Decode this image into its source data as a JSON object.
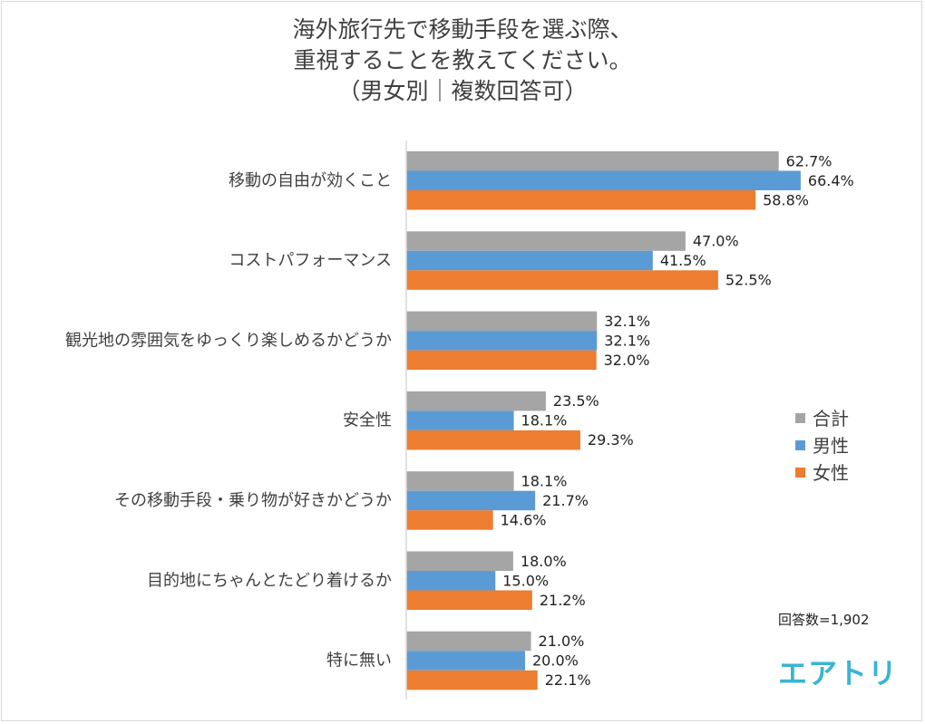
{
  "chart_data": {
    "type": "bar",
    "orientation": "horizontal",
    "title_lines": [
      "海外旅行先で移動手段を選ぶ際、",
      "重視することを教えてください。",
      "（男女別｜複数回答可）"
    ],
    "categories": [
      "移動の自由が効くこと",
      "コストパフォーマンス",
      "観光地の雰囲気をゆっくり楽しめるかどうか",
      "安全性",
      "その移動手段・乗り物が好きかどうか",
      "目的地にちゃんとたどり着けるか",
      "特に無い"
    ],
    "series": [
      {
        "name": "合計",
        "color": "#a5a5a5",
        "values": [
          62.7,
          47.0,
          32.1,
          23.5,
          18.1,
          18.0,
          21.0
        ]
      },
      {
        "name": "男性",
        "color": "#5b9bd5",
        "values": [
          66.4,
          41.5,
          32.1,
          18.1,
          21.7,
          15.0,
          20.0
        ]
      },
      {
        "name": "女性",
        "color": "#ed7d31",
        "values": [
          58.8,
          52.5,
          32.0,
          29.3,
          14.6,
          21.2,
          22.1
        ]
      }
    ],
    "value_suffix": "%",
    "value_format": "one_decimal",
    "legend": "right",
    "grid": false,
    "xlim": [
      0,
      100
    ]
  },
  "note": "回答数=1,902",
  "logo_text": "エアトリ"
}
